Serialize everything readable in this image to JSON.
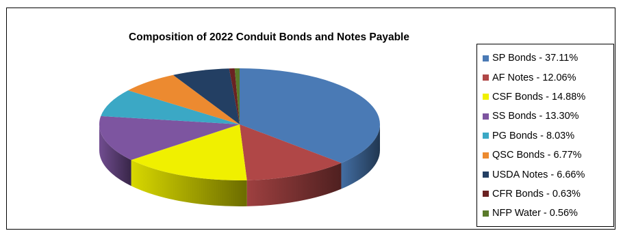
{
  "chart_data": {
    "type": "pie",
    "title": "Composition of 2022 Conduit Bonds and Notes Payable",
    "legend_position": "right",
    "style": "3d",
    "slices": [
      {
        "label": "SP Bonds - 37.11%",
        "value": 37.11,
        "color": "#4a7ab5"
      },
      {
        "label": "AF Notes - 12.06%",
        "value": 12.06,
        "color": "#b04747"
      },
      {
        "label": "CSF Bonds - 14.88%",
        "value": 14.88,
        "color": "#f0f000"
      },
      {
        "label": "SS Bonds - 13.30%",
        "value": 13.3,
        "color": "#7d55a0"
      },
      {
        "label": "PG Bonds - 8.03%",
        "value": 8.03,
        "color": "#3ba8c5"
      },
      {
        "label": "QSC Bonds - 6.77%",
        "value": 6.77,
        "color": "#ec8a30"
      },
      {
        "label": "USDA Notes - 6.66%",
        "value": 6.66,
        "color": "#233f63"
      },
      {
        "label": "CFR Bonds - 0.63%",
        "value": 0.63,
        "color": "#6a2222"
      },
      {
        "label": "NFP Water - 0.56%",
        "value": 0.56,
        "color": "#5a7a2a"
      }
    ]
  }
}
